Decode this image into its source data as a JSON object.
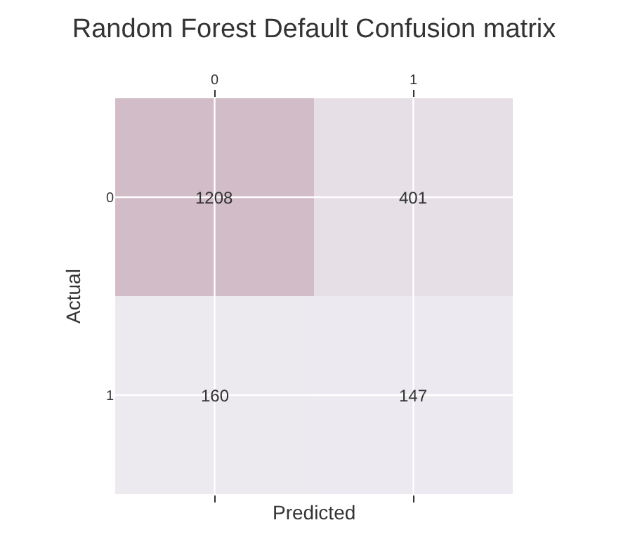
{
  "chart_data": {
    "type": "heatmap",
    "title": "Random Forest Default Confusion matrix",
    "xlabel": "Predicted",
    "ylabel": "Actual",
    "categories": [
      "0",
      "1"
    ],
    "y_categories": [
      "0",
      "1"
    ],
    "cells": [
      [
        1208,
        401
      ],
      [
        160,
        147
      ]
    ],
    "data_labels": true,
    "grid": true
  }
}
